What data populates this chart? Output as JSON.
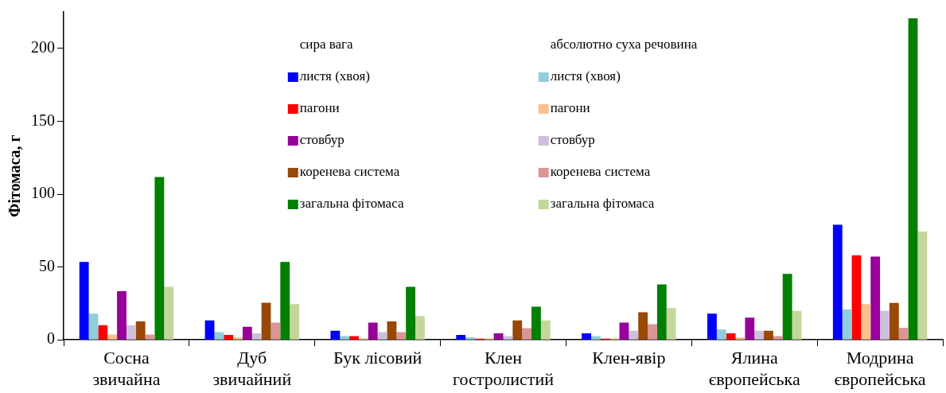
{
  "chart_data": {
    "type": "bar",
    "ylabel": "Фітомаса, г",
    "categories": [
      "Сосна звичайна",
      "Дуб звичайний",
      "Бук лісовий",
      "Клен гостролистий",
      "Клен-явір",
      "Ялина європейська",
      "Модрина європейська"
    ],
    "series": [
      {
        "name": "листя (хвоя)",
        "color": "#0000ff",
        "values": [
          53.4,
          13.4,
          6.2,
          3.4,
          4.5,
          18,
          79
        ]
      },
      {
        "name": "листя (хвоя)",
        "color": "#92cddc",
        "values": [
          18,
          5.3,
          2.5,
          1.7,
          2.5,
          7.1,
          20.8
        ]
      },
      {
        "name": "пагони",
        "color": "#ff0000",
        "values": [
          10.1,
          3.4,
          2.5,
          0.8,
          0.8,
          4.5,
          58
        ]
      },
      {
        "name": "пагони",
        "color": "#fac090",
        "values": [
          3.6,
          1.8,
          1,
          1,
          1,
          1.7,
          24.5
        ]
      },
      {
        "name": "стовбур",
        "color": "#990099",
        "values": [
          33.4,
          9,
          11.8,
          4.5,
          11.8,
          15.3,
          57.1
        ]
      },
      {
        "name": "стовбур",
        "color": "#ccc0da",
        "values": [
          10.1,
          4.5,
          5.3,
          2.6,
          6.2,
          6.2,
          19.9
        ]
      },
      {
        "name": "коренева система",
        "color": "#984807",
        "values": [
          12.7,
          25.5,
          12.7,
          13.4,
          19,
          6.2,
          25.3
        ]
      },
      {
        "name": "коренева система",
        "color": "#d99694",
        "values": [
          3.6,
          11.8,
          5.3,
          8,
          10.8,
          2.5,
          8.1
        ]
      },
      {
        "name": "загальна фітомаса",
        "color": "#008000",
        "values": [
          111.8,
          53.4,
          36.4,
          22.7,
          38.1,
          45.3,
          220.7
        ]
      },
      {
        "name": "загальна фітомаса",
        "color": "#c4d79b",
        "values": [
          36.4,
          24.5,
          16.4,
          13.4,
          21.8,
          19.9,
          74.3
        ]
      }
    ],
    "annotations": [
      "сира вага",
      "абсолютно суха речовина"
    ],
    "ylim": [
      0,
      225
    ],
    "yticks": [
      0,
      50,
      100,
      150,
      200
    ],
    "grid": false,
    "legend": "top"
  }
}
